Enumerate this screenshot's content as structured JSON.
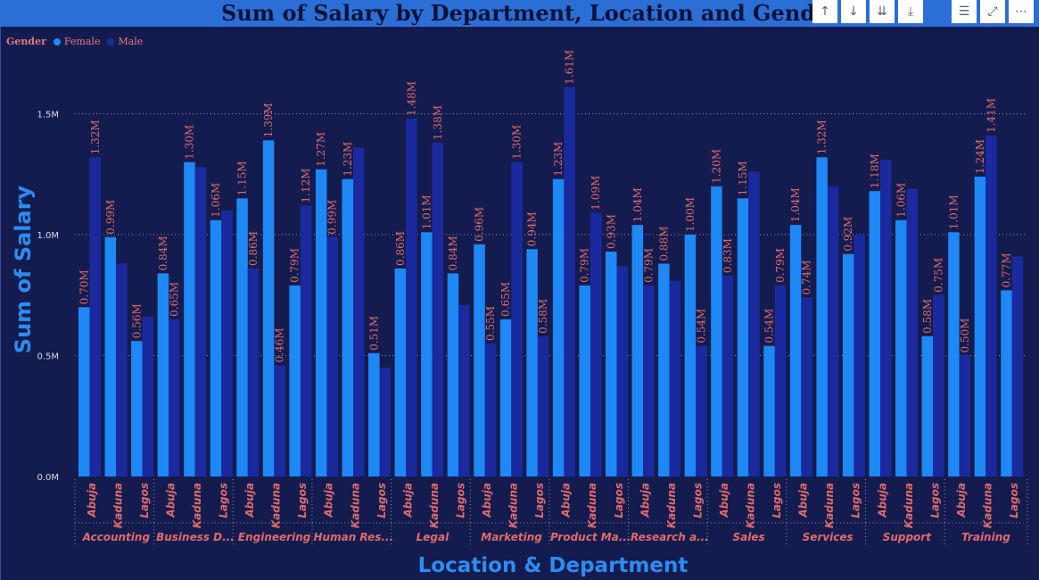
{
  "chart_data": {
    "type": "bar",
    "title": "Sum of Salary by Department, Location and Gender",
    "xlabel": "Location & Department",
    "ylabel": "Sum of Salary",
    "ylim": [
      0,
      1.8
    ],
    "yticks": [
      "0.0M",
      "0.5M",
      "1.0M",
      "1.5M"
    ],
    "grid": true,
    "legend": {
      "title": "Gender",
      "position": "top-left"
    },
    "departments": [
      "Accounting",
      "Business D...",
      "Engineering",
      "Human Res...",
      "Legal",
      "Marketing",
      "Product Ma...",
      "Research a...",
      "Sales",
      "Services",
      "Support",
      "Training"
    ],
    "locations": [
      "Abuja",
      "Kaduna",
      "Lagos"
    ],
    "series": [
      {
        "name": "Female",
        "color": "#1e88f5",
        "values": [
          0.7,
          0.99,
          0.56,
          0.84,
          1.3,
          1.06,
          1.15,
          1.39,
          0.79,
          1.27,
          1.23,
          0.51,
          0.86,
          1.01,
          0.84,
          0.96,
          0.65,
          0.94,
          1.23,
          0.79,
          0.93,
          1.04,
          0.88,
          1.0,
          1.2,
          1.15,
          0.54,
          1.04,
          1.32,
          0.92,
          1.18,
          1.06,
          0.58,
          1.01,
          1.24,
          0.77
        ],
        "labels": [
          "0.70M",
          "0.99M",
          "0.56M",
          "0.84M",
          "1.30M",
          "1.06M",
          "1.15M",
          "1.39M",
          "0.79M",
          "1.27M",
          "1.23M",
          "0.51M",
          "0.86M",
          "1.01M",
          "0.84M",
          "0.96M",
          "0.65M",
          "0.94M",
          "1.23M",
          "0.79M",
          "0.93M",
          "1.04M",
          "0.88M",
          "1.00M",
          "1.20M",
          "1.15M",
          "0.54M",
          "1.04M",
          "1.32M",
          "0.92M",
          "1.18M",
          "1.06M",
          "0.58M",
          "1.01M",
          "1.24M",
          "0.77M"
        ]
      },
      {
        "name": "Male",
        "color": "#1a2a9e",
        "values": [
          1.32,
          0.88,
          0.66,
          0.65,
          1.28,
          1.1,
          0.86,
          0.46,
          1.12,
          0.99,
          1.36,
          0.45,
          1.48,
          1.38,
          0.71,
          0.55,
          1.3,
          0.58,
          1.61,
          1.09,
          0.87,
          0.79,
          0.81,
          0.54,
          0.83,
          1.26,
          0.79,
          0.74,
          1.2,
          1.0,
          1.31,
          1.19,
          0.75,
          0.5,
          1.41,
          0.91
        ],
        "labels": [
          "1.32M",
          "",
          "",
          "0.65M",
          "",
          "",
          "0.86M",
          "0.46M",
          "1.12M",
          "0.99M",
          "",
          "",
          "1.48M",
          "1.38M",
          "",
          "0.55M",
          "1.30M",
          "0.58M",
          "1.61M",
          "1.09M",
          "",
          "0.79M",
          "",
          "0.54M",
          "0.83M",
          "",
          "0.79M",
          "0.74M",
          "",
          "",
          "",
          "",
          "0.75M",
          "0.50M",
          "1.41M",
          ""
        ]
      }
    ]
  },
  "toolbar": {
    "icons": [
      "arrow-up-icon",
      "arrow-down-icon",
      "double-arrow-down-icon",
      "expand-hierarchy-icon",
      "filter-icon",
      "focus-mode-icon",
      "more-options-icon"
    ],
    "glyphs": [
      "↑",
      "↓",
      "⇊",
      "⤓",
      "☰",
      "⤢",
      "⋯"
    ]
  }
}
